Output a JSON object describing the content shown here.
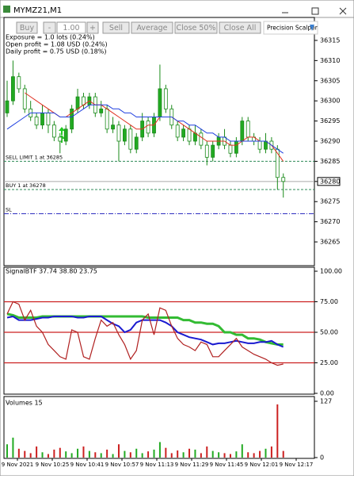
{
  "window": {
    "title": "MYMZ21,M1"
  },
  "toolbar": {
    "buy": "Buy",
    "minus": "-",
    "lots": "1.00",
    "plus": "+",
    "sell": "Sell",
    "average": "Average",
    "close_half": "Close 50%",
    "close_all": "Close All",
    "brand": "Precision Scalper"
  },
  "info": [
    "Exposure = 1.0 lots (0.24%)",
    "Open profit = 1.08 USD (0.24%)",
    "Daily profit = 0.75 USD (0.18%)"
  ],
  "price_chart": {
    "type": "candlestick",
    "ylim": [
      36259.5,
      36320.5
    ],
    "yticks": [
      36265,
      36270,
      36275,
      36280,
      36285,
      36290,
      36295,
      36300,
      36305,
      36310,
      36315
    ],
    "current_price": 36280,
    "orders": [
      {
        "label": "SELL LIMIT 1 at 36285",
        "price": 36285,
        "color": "#2e8b57"
      },
      {
        "label": "BUY 1 at 36278",
        "price": 36278,
        "color": "#2e8b57"
      },
      {
        "label": "SL",
        "price": 36272,
        "color": "#3030c0"
      }
    ],
    "open": [
      36297,
      36300,
      36306,
      36303,
      36298,
      36296,
      36294,
      36297,
      36294,
      36291,
      36290,
      36293,
      36298,
      36301,
      36299,
      36301,
      36297,
      36298,
      36293,
      36294,
      36290,
      36293,
      36288,
      36291,
      36295,
      36292,
      36296,
      36303,
      36298,
      36294,
      36291,
      36293,
      36290,
      36292,
      36289,
      36286,
      36289,
      36291,
      36289,
      36287,
      36290,
      36295,
      36291,
      36290,
      36288,
      36290,
      36288,
      36281
    ],
    "high": [
      36305,
      36310,
      36307,
      36304,
      36300,
      36297,
      36299,
      36298,
      36295,
      36292,
      36294,
      36299,
      36303,
      36302,
      36302,
      36302,
      36300,
      36299,
      36296,
      36295,
      36294,
      36294,
      36292,
      36297,
      36296,
      36297,
      36309,
      36304,
      36299,
      36295,
      36294,
      36294,
      36294,
      36293,
      36290,
      36290,
      36292,
      36293,
      36290,
      36291,
      36296,
      36296,
      36292,
      36291,
      36292,
      36291,
      36289,
      36282
    ],
    "low": [
      36296,
      36299,
      36302,
      36297,
      36295,
      36293,
      36293,
      36292,
      36290,
      36287,
      36289,
      36292,
      36297,
      36298,
      36298,
      36296,
      36296,
      36292,
      36292,
      36285,
      36289,
      36287,
      36287,
      36290,
      36291,
      36291,
      36295,
      36297,
      36293,
      36290,
      36290,
      36289,
      36289,
      36288,
      36284,
      36285,
      36288,
      36288,
      36286,
      36286,
      36289,
      36290,
      36289,
      36287,
      36287,
      36287,
      36278,
      36276
    ],
    "close": [
      36300,
      36306,
      36303,
      36298,
      36296,
      36294,
      36297,
      36294,
      36291,
      36290,
      36293,
      36298,
      36301,
      36299,
      36301,
      36297,
      36298,
      36293,
      36294,
      36290,
      36293,
      36288,
      36291,
      36295,
      36292,
      36296,
      36303,
      36298,
      36294,
      36291,
      36293,
      36290,
      36292,
      36289,
      36286,
      36289,
      36291,
      36289,
      36287,
      36290,
      36295,
      36291,
      36290,
      36288,
      36290,
      36288,
      36281,
      36280
    ],
    "ma": [
      {
        "color": "#e03020",
        "values": [
          null,
          null,
          null,
          36302,
          36301,
          36300,
          36299,
          36298,
          36297,
          36296,
          36296,
          36297,
          36298,
          36299,
          36300,
          36299,
          36299,
          36298,
          36297,
          36296,
          36295,
          36294,
          36293,
          36293,
          36294,
          36294,
          36296,
          36296,
          36296,
          36295,
          36294,
          36293,
          36292,
          36291,
          36290,
          36290,
          36290,
          36290,
          36289,
          36289,
          36290,
          36291,
          36291,
          36290,
          36290,
          36289,
          36287,
          36285
        ]
      },
      {
        "color": "#2040e0",
        "values": [
          36293,
          36294,
          36295,
          36296,
          36297,
          36297,
          36297,
          36297,
          36297,
          36296,
          36296,
          36296,
          36297,
          36298,
          36299,
          36299,
          36299,
          36299,
          36298,
          36298,
          36297,
          36297,
          36296,
          36296,
          36296,
          36296,
          36296,
          36296,
          36296,
          36295,
          36295,
          36294,
          36294,
          36293,
          36292,
          36292,
          36291,
          36291,
          36290,
          36290,
          36290,
          36290,
          36290,
          36290,
          36290,
          36289,
          36288,
          36287
        ]
      }
    ]
  },
  "indicator": {
    "type": "line",
    "label": "SignalBTF 37.74 38.80 23.75",
    "ylim": [
      0,
      100
    ],
    "yticks": [
      {
        "value": 0,
        "label": "0.00"
      },
      {
        "value": 25,
        "label": "25.00"
      },
      {
        "value": 50,
        "label": "50.00"
      },
      {
        "value": 75,
        "label": "75.00"
      },
      {
        "value": 100,
        "label": "100.00"
      }
    ],
    "levels": [
      75,
      50,
      25
    ],
    "series": [
      {
        "color": "#33bb33",
        "width": 3,
        "values": [
          65,
          64,
          62,
          62,
          62,
          62,
          63,
          63,
          63,
          63,
          63,
          63,
          63,
          63,
          63,
          63,
          63,
          63,
          63,
          63,
          63,
          63,
          63,
          63,
          62,
          62,
          62,
          62,
          62,
          62,
          60,
          60,
          58,
          58,
          57,
          57,
          55,
          50,
          50,
          48,
          48,
          45,
          45,
          44,
          42,
          41,
          40,
          40
        ]
      },
      {
        "color": "#1a1ad0",
        "width": 2,
        "values": [
          62,
          63,
          60,
          60,
          60,
          61,
          62,
          62,
          63,
          63,
          63,
          63,
          62,
          62,
          63,
          63,
          63,
          60,
          57,
          55,
          50,
          52,
          58,
          60,
          60,
          60,
          60,
          58,
          55,
          50,
          48,
          46,
          45,
          44,
          42,
          40,
          41,
          41,
          42,
          43,
          42,
          41,
          41,
          42,
          42,
          43,
          40,
          38
        ]
      },
      {
        "color": "#b02020",
        "width": 1.2,
        "values": [
          65,
          75,
          73,
          60,
          68,
          55,
          50,
          40,
          35,
          30,
          28,
          52,
          50,
          30,
          28,
          45,
          60,
          55,
          58,
          48,
          40,
          28,
          35,
          60,
          65,
          48,
          70,
          68,
          55,
          45,
          40,
          38,
          35,
          42,
          40,
          30,
          30,
          35,
          40,
          45,
          38,
          35,
          32,
          30,
          28,
          25,
          23,
          24
        ]
      }
    ]
  },
  "volume": {
    "type": "bar",
    "label": "Volumes 15",
    "ylim": [
      0,
      127
    ],
    "yticks": [
      0,
      127
    ],
    "values": [
      30,
      45,
      20,
      15,
      10,
      25,
      12,
      8,
      18,
      22,
      14,
      10,
      20,
      25,
      15,
      12,
      10,
      18,
      8,
      30,
      15,
      12,
      20,
      10,
      14,
      18,
      35,
      22,
      10,
      16,
      12,
      20,
      18,
      10,
      25,
      15,
      12,
      10,
      8,
      14,
      30,
      12,
      10,
      15,
      20,
      25,
      120,
      15
    ]
  },
  "time_axis": [
    "9 Nov 2021",
    "9 Nov 10:25",
    "9 Nov 10:41",
    "9 Nov 10:57",
    "9 Nov 11:13",
    "9 Nov 11:29",
    "9 Nov 11:45",
    "9 Nov 12:01",
    "9 Nov 12:17"
  ]
}
